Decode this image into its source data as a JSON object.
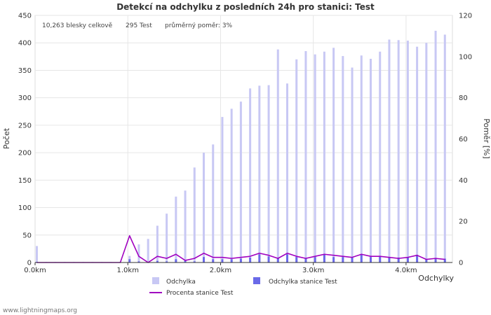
{
  "chart_data": {
    "type": "bar",
    "title": "Detekcí na odchylku z posledních 24h pro stanici: Test",
    "stats": {
      "total": "10,263 blesky celkově",
      "station": "295 Test",
      "ratio": "průměrný poměr: 3%"
    },
    "xlabel": "Odchylky",
    "ylabel_left": "Počet",
    "ylabel_right": "Poměr [%]",
    "xlim": [
      0,
      4.5
    ],
    "ylim_left": [
      0,
      450
    ],
    "ylim_right": [
      0,
      120
    ],
    "x_ticks": [
      {
        "value": 0,
        "label": "0.0km"
      },
      {
        "value": 1,
        "label": "1.0km"
      },
      {
        "value": 2,
        "label": "2.0km"
      },
      {
        "value": 3,
        "label": "3.0km"
      },
      {
        "value": 4,
        "label": "4.0km"
      }
    ],
    "y_ticks_left": [
      0,
      50,
      100,
      150,
      200,
      250,
      300,
      350,
      400,
      450
    ],
    "y_ticks_right": [
      0,
      20,
      40,
      60,
      80,
      100,
      120
    ],
    "bin_width": 0.1,
    "x": [
      0.0,
      0.1,
      0.2,
      0.3,
      0.4,
      0.5,
      0.6,
      0.7,
      0.8,
      0.9,
      1.0,
      1.1,
      1.2,
      1.3,
      1.4,
      1.5,
      1.6,
      1.7,
      1.8,
      1.9,
      2.0,
      2.1,
      2.2,
      2.3,
      2.4,
      2.5,
      2.6,
      2.7,
      2.8,
      2.9,
      3.0,
      3.1,
      3.2,
      3.3,
      3.4,
      3.5,
      3.6,
      3.7,
      3.8,
      3.9,
      4.0,
      4.1,
      4.2,
      4.3,
      4.4
    ],
    "series": [
      {
        "name": "Odchylka",
        "color": "#c8c8f4",
        "values": [
          30,
          1,
          1,
          1,
          1,
          1,
          1,
          1,
          1,
          1,
          12,
          33,
          43,
          67,
          89,
          120,
          131,
          173,
          200,
          215,
          265,
          280,
          293,
          317,
          322,
          323,
          388,
          326,
          370,
          385,
          379,
          384,
          391,
          376,
          355,
          377,
          371,
          384,
          406,
          405,
          404,
          393,
          400,
          422,
          415
        ]
      },
      {
        "name": "Odchylka stanice Test",
        "color": "#6a6ae8",
        "values": [
          1,
          0,
          0,
          0,
          0,
          0,
          0,
          0,
          0,
          0,
          6,
          2,
          0,
          3,
          2,
          6,
          3,
          2,
          10,
          6,
          6,
          6,
          7,
          9,
          15,
          11,
          8,
          15,
          10,
          8,
          10,
          14,
          10,
          10,
          9,
          14,
          10,
          11,
          10,
          9,
          10,
          14,
          6,
          8,
          7
        ]
      },
      {
        "name": "Procenta stanice Test",
        "color": "#a000c0",
        "type": "line",
        "axis": "right",
        "values": [
          0,
          0,
          0,
          0,
          0,
          0,
          0,
          0,
          0,
          0,
          13,
          3,
          0,
          3,
          2,
          4,
          1,
          2,
          4.5,
          2.5,
          2.5,
          2,
          2.5,
          3,
          4.5,
          3.5,
          2,
          4.5,
          3,
          2,
          3,
          4,
          3.5,
          3,
          2.5,
          4,
          3,
          3,
          2.5,
          2,
          2.5,
          3.5,
          1.5,
          2,
          1.5
        ]
      }
    ],
    "legend": [
      {
        "label": "Odchylka",
        "kind": "box",
        "color": "#c8c8f4"
      },
      {
        "label": "Odchylka stanice Test",
        "kind": "box",
        "color": "#6a6ae8"
      },
      {
        "label": "Procenta stanice Test",
        "kind": "line",
        "color": "#a000c0"
      }
    ],
    "footer": "www.lightningmaps.org"
  }
}
